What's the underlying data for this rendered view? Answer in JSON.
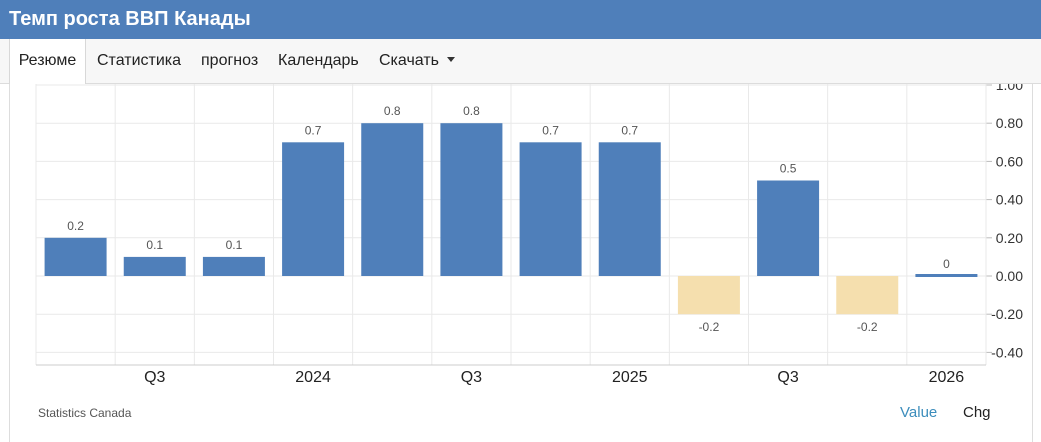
{
  "header": {
    "title": "Темп роста ВВП Канады"
  },
  "tabs": [
    {
      "label": "Резюме",
      "active": true
    },
    {
      "label": "Статистика"
    },
    {
      "label": "прогноз"
    },
    {
      "label": "Календарь"
    },
    {
      "label": "Скачать",
      "dropdown": true
    }
  ],
  "footer": {
    "source": "Statistics Canada",
    "toggle_value": "Value",
    "toggle_chg": "Chg",
    "active_color": "#3c8dbc"
  },
  "chart_data": {
    "type": "bar",
    "categories": [
      "",
      "Q3",
      "",
      "2024",
      "",
      "Q3",
      "",
      "2025",
      "",
      "Q3",
      "",
      "2026"
    ],
    "values": [
      0.2,
      0.1,
      0.1,
      0.7,
      0.8,
      0.8,
      0.7,
      0.7,
      -0.2,
      0.5,
      -0.2,
      0
    ],
    "data_labels": [
      "0.2",
      "0.1",
      "0.1",
      "0.7",
      "0.8",
      "0.8",
      "0.7",
      "0.7",
      "-0.2",
      "0.5",
      "-0.2",
      "0"
    ],
    "x_tick_labels": [
      "Q3",
      "2024",
      "Q3",
      "2025",
      "Q3",
      "2026"
    ],
    "y_ticks": [
      -0.4,
      -0.2,
      0,
      0.2,
      0.4,
      0.6,
      0.8,
      1.0
    ],
    "y_tick_labels": [
      "-0.40",
      "-0.20",
      "0.00",
      "0.20",
      "0.40",
      "0.60",
      "0.80",
      "1.00"
    ],
    "ylim": [
      -0.4,
      1.0
    ],
    "ylabel_position": "right",
    "grid": true,
    "colors": {
      "positive": "#4f7fba",
      "negative": "#f5dfae",
      "grid": "#e9e9e9",
      "label": "#555555"
    },
    "title": "",
    "xlabel": "",
    "ylabel": ""
  }
}
